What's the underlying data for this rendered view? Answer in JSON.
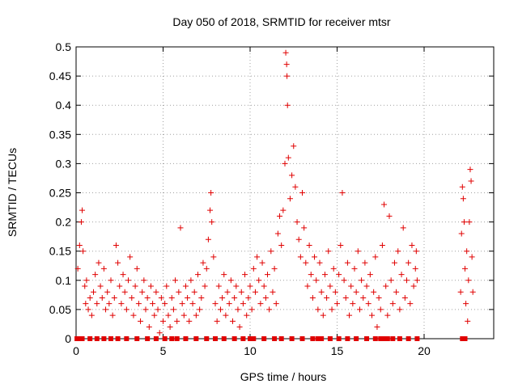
{
  "chart_data": {
    "type": "scatter",
    "title": "Day 050 of 2018, SRMTID for receiver mtsr",
    "xlabel": "GPS time / hours",
    "ylabel": "SRMTID / TECUs",
    "xlim": [
      0,
      24
    ],
    "ylim": [
      0,
      0.5
    ],
    "xticks": [
      0,
      5,
      10,
      15,
      20
    ],
    "xtick_labels": [
      "0",
      "5",
      "10",
      "15",
      "20"
    ],
    "yticks": [
      0,
      0.05,
      0.1,
      0.15,
      0.2,
      0.25,
      0.3,
      0.35,
      0.4,
      0.45,
      0.5
    ],
    "ytick_labels": [
      "0",
      "0.05",
      "0.1",
      "0.15",
      "0.2",
      "0.25",
      "0.3",
      "0.35",
      "0.4",
      "0.45",
      "0.5"
    ],
    "grid": true,
    "marker": "+",
    "color": "#e00000",
    "zero_marker": "square",
    "series": [
      {
        "values": [
          [
            0.1,
            0.12
          ],
          [
            0.2,
            0.16
          ],
          [
            0.3,
            0.2
          ],
          [
            0.35,
            0.22
          ],
          [
            0.4,
            0.15
          ],
          [
            0.5,
            0.09
          ],
          [
            0.55,
            0.06
          ],
          [
            0.6,
            0.1
          ],
          [
            0.7,
            0.05
          ],
          [
            0.8,
            0.07
          ],
          [
            0.9,
            0.04
          ],
          [
            1.0,
            0.08
          ],
          [
            1.1,
            0.11
          ],
          [
            1.2,
            0.06
          ],
          [
            1.3,
            0.13
          ],
          [
            1.4,
            0.09
          ],
          [
            1.5,
            0.07
          ],
          [
            1.6,
            0.12
          ],
          [
            1.7,
            0.05
          ],
          [
            1.8,
            0.08
          ],
          [
            1.9,
            0.06
          ],
          [
            2.0,
            0.1
          ],
          [
            2.1,
            0.04
          ],
          [
            2.2,
            0.07
          ],
          [
            2.3,
            0.16
          ],
          [
            2.4,
            0.13
          ],
          [
            2.5,
            0.09
          ],
          [
            2.6,
            0.06
          ],
          [
            2.7,
            0.11
          ],
          [
            2.8,
            0.08
          ],
          [
            2.9,
            0.05
          ],
          [
            3.0,
            0.1
          ],
          [
            3.1,
            0.14
          ],
          [
            3.2,
            0.07
          ],
          [
            3.3,
            0.04
          ],
          [
            3.4,
            0.09
          ],
          [
            3.5,
            0.12
          ],
          [
            3.6,
            0.06
          ],
          [
            3.7,
            0.03
          ],
          [
            3.8,
            0.08
          ],
          [
            3.9,
            0.1
          ],
          [
            4.0,
            0.05
          ],
          [
            4.1,
            0.07
          ],
          [
            4.2,
            0.02
          ],
          [
            4.3,
            0.09
          ],
          [
            4.4,
            0.06
          ],
          [
            4.5,
            0.04
          ],
          [
            4.6,
            0.08
          ],
          [
            4.7,
            0.05
          ],
          [
            4.8,
            0.01
          ],
          [
            4.9,
            0.07
          ],
          [
            5.0,
            0.03
          ],
          [
            5.1,
            0.06
          ],
          [
            5.2,
            0.09
          ],
          [
            5.3,
            0.04
          ],
          [
            5.4,
            0.02
          ],
          [
            5.5,
            0.07
          ],
          [
            5.6,
            0.05
          ],
          [
            5.7,
            0.1
          ],
          [
            5.8,
            0.03
          ],
          [
            5.9,
            0.08
          ],
          [
            6.0,
            0.19
          ],
          [
            6.1,
            0.06
          ],
          [
            6.2,
            0.04
          ],
          [
            6.3,
            0.09
          ],
          [
            6.4,
            0.07
          ],
          [
            6.5,
            0.03
          ],
          [
            6.6,
            0.1
          ],
          [
            6.7,
            0.06
          ],
          [
            6.8,
            0.08
          ],
          [
            6.9,
            0.04
          ],
          [
            7.0,
            0.11
          ],
          [
            7.1,
            0.05
          ],
          [
            7.2,
            0.07
          ],
          [
            7.3,
            0.13
          ],
          [
            7.4,
            0.09
          ],
          [
            7.5,
            0.12
          ],
          [
            7.6,
            0.17
          ],
          [
            7.7,
            0.22
          ],
          [
            7.75,
            0.25
          ],
          [
            7.8,
            0.2
          ],
          [
            7.9,
            0.14
          ],
          [
            8.0,
            0.06
          ],
          [
            8.1,
            0.03
          ],
          [
            8.2,
            0.09
          ],
          [
            8.3,
            0.05
          ],
          [
            8.4,
            0.07
          ],
          [
            8.5,
            0.11
          ],
          [
            8.6,
            0.04
          ],
          [
            8.7,
            0.08
          ],
          [
            8.8,
            0.06
          ],
          [
            8.9,
            0.1
          ],
          [
            9.0,
            0.03
          ],
          [
            9.1,
            0.07
          ],
          [
            9.2,
            0.09
          ],
          [
            9.3,
            0.05
          ],
          [
            9.4,
            0.02
          ],
          [
            9.5,
            0.08
          ],
          [
            9.6,
            0.06
          ],
          [
            9.7,
            0.11
          ],
          [
            9.8,
            0.04
          ],
          [
            9.9,
            0.07
          ],
          [
            10.0,
            0.09
          ],
          [
            10.1,
            0.05
          ],
          [
            10.2,
            0.12
          ],
          [
            10.3,
            0.08
          ],
          [
            10.4,
            0.14
          ],
          [
            10.5,
            0.1
          ],
          [
            10.6,
            0.06
          ],
          [
            10.7,
            0.13
          ],
          [
            10.8,
            0.09
          ],
          [
            10.9,
            0.07
          ],
          [
            11.0,
            0.11
          ],
          [
            11.1,
            0.05
          ],
          [
            11.2,
            0.15
          ],
          [
            11.3,
            0.08
          ],
          [
            11.4,
            0.12
          ],
          [
            11.5,
            0.06
          ],
          [
            11.6,
            0.18
          ],
          [
            11.7,
            0.21
          ],
          [
            11.8,
            0.16
          ],
          [
            11.9,
            0.22
          ],
          [
            12.0,
            0.3
          ],
          [
            12.05,
            0.49
          ],
          [
            12.1,
            0.47
          ],
          [
            12.12,
            0.45
          ],
          [
            12.15,
            0.4
          ],
          [
            12.2,
            0.31
          ],
          [
            12.3,
            0.24
          ],
          [
            12.4,
            0.28
          ],
          [
            12.5,
            0.33
          ],
          [
            12.6,
            0.26
          ],
          [
            12.7,
            0.2
          ],
          [
            12.8,
            0.17
          ],
          [
            12.9,
            0.14
          ],
          [
            13.0,
            0.25
          ],
          [
            13.1,
            0.19
          ],
          [
            13.2,
            0.13
          ],
          [
            13.3,
            0.09
          ],
          [
            13.4,
            0.16
          ],
          [
            13.5,
            0.11
          ],
          [
            13.6,
            0.07
          ],
          [
            13.7,
            0.14
          ],
          [
            13.8,
            0.1
          ],
          [
            13.9,
            0.05
          ],
          [
            14.0,
            0.13
          ],
          [
            14.1,
            0.08
          ],
          [
            14.2,
            0.04
          ],
          [
            14.3,
            0.11
          ],
          [
            14.4,
            0.07
          ],
          [
            14.5,
            0.15
          ],
          [
            14.6,
            0.09
          ],
          [
            14.7,
            0.05
          ],
          [
            14.8,
            0.12
          ],
          [
            14.9,
            0.08
          ],
          [
            15.0,
            0.06
          ],
          [
            15.1,
            0.11
          ],
          [
            15.2,
            0.16
          ],
          [
            15.3,
            0.25
          ],
          [
            15.4,
            0.1
          ],
          [
            15.5,
            0.07
          ],
          [
            15.6,
            0.13
          ],
          [
            15.7,
            0.04
          ],
          [
            15.8,
            0.09
          ],
          [
            15.9,
            0.06
          ],
          [
            16.0,
            0.12
          ],
          [
            16.1,
            0.08
          ],
          [
            16.2,
            0.15
          ],
          [
            16.3,
            0.05
          ],
          [
            16.4,
            0.1
          ],
          [
            16.5,
            0.07
          ],
          [
            16.6,
            0.13
          ],
          [
            16.7,
            0.09
          ],
          [
            16.8,
            0.06
          ],
          [
            16.9,
            0.11
          ],
          [
            17.0,
            0.04
          ],
          [
            17.1,
            0.08
          ],
          [
            17.2,
            0.14
          ],
          [
            17.3,
            0.02
          ],
          [
            17.4,
            0.07
          ],
          [
            17.5,
            0.05
          ],
          [
            17.6,
            0.16
          ],
          [
            17.7,
            0.23
          ],
          [
            17.8,
            0.09
          ],
          [
            17.9,
            0.04
          ],
          [
            18.0,
            0.21
          ],
          [
            18.1,
            0.1
          ],
          [
            18.2,
            0.06
          ],
          [
            18.3,
            0.13
          ],
          [
            18.4,
            0.08
          ],
          [
            18.5,
            0.15
          ],
          [
            18.6,
            0.05
          ],
          [
            18.7,
            0.11
          ],
          [
            18.8,
            0.19
          ],
          [
            18.9,
            0.07
          ],
          [
            19.0,
            0.1
          ],
          [
            19.1,
            0.13
          ],
          [
            19.2,
            0.06
          ],
          [
            19.3,
            0.16
          ],
          [
            19.4,
            0.09
          ],
          [
            19.5,
            0.12
          ],
          [
            19.55,
            0.15
          ],
          [
            19.6,
            0.1
          ],
          [
            22.1,
            0.08
          ],
          [
            22.15,
            0.18
          ],
          [
            22.2,
            0.26
          ],
          [
            22.25,
            0.24
          ],
          [
            22.3,
            0.2
          ],
          [
            22.35,
            0.12
          ],
          [
            22.4,
            0.06
          ],
          [
            22.45,
            0.15
          ],
          [
            22.5,
            0.03
          ],
          [
            22.55,
            0.1
          ],
          [
            22.6,
            0.2
          ],
          [
            22.65,
            0.29
          ],
          [
            22.7,
            0.27
          ],
          [
            22.75,
            0.14
          ],
          [
            22.8,
            0.08
          ]
        ]
      }
    ],
    "zero_points_x": [
      0.05,
      0.15,
      0.25,
      0.35,
      0.8,
      1.2,
      1.6,
      2.0,
      2.4,
      2.9,
      3.5,
      4.1,
      4.6,
      5.1,
      5.5,
      5.8,
      6.3,
      6.9,
      7.5,
      8.0,
      8.5,
      9.1,
      9.6,
      10.0,
      10.2,
      10.8,
      11.4,
      11.8,
      12.4,
      13.0,
      13.6,
      13.9,
      14.1,
      14.6,
      15.1,
      15.6,
      16.1,
      16.7,
      17.2,
      17.5,
      17.7,
      17.9,
      18.2,
      18.6,
      19.1,
      19.6,
      22.2,
      22.35
    ]
  }
}
